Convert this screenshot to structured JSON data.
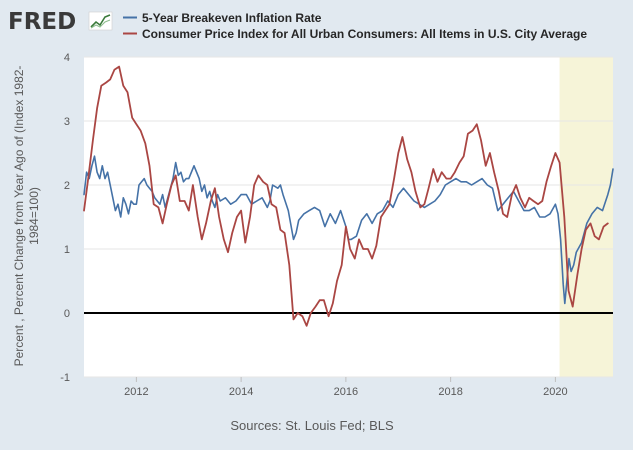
{
  "logo": {
    "text": "FRED"
  },
  "source": "Sources: St. Louis Fed; BLS",
  "chart_data": {
    "type": "line",
    "title": "",
    "xlabel": "",
    "ylabel": [
      "Percent , Percent Change from Year Ago of (Index 1982-",
      "1984=100)"
    ],
    "xlim": [
      2011.0,
      2021.1
    ],
    "ylim": [
      -1,
      4
    ],
    "x_ticks": [
      2012,
      2014,
      2016,
      2018,
      2020
    ],
    "x_tick_labels": [
      "2012",
      "2014",
      "2016",
      "2018",
      "2020"
    ],
    "y_ticks": [
      -1,
      0,
      1,
      2,
      3,
      4
    ],
    "y_tick_labels": [
      "-1",
      "0",
      "1",
      "2",
      "3",
      "4"
    ],
    "grid": "horizontal",
    "legend": "top-left",
    "recession": {
      "start": 2020.08,
      "end": 2021.1,
      "color": "#f6f4d8"
    },
    "zero_line": 0,
    "series": [
      {
        "name": "5-Year Breakeven Inflation Rate",
        "color": "#4572a7",
        "x": [
          2011.0,
          2011.05,
          2011.1,
          2011.15,
          2011.2,
          2011.25,
          2011.3,
          2011.35,
          2011.4,
          2011.45,
          2011.5,
          2011.55,
          2011.6,
          2011.65,
          2011.7,
          2011.75,
          2011.8,
          2011.85,
          2011.9,
          2011.95,
          2012.0,
          2012.05,
          2012.1,
          2012.15,
          2012.2,
          2012.25,
          2012.3,
          2012.35,
          2012.4,
          2012.45,
          2012.5,
          2012.55,
          2012.6,
          2012.65,
          2012.7,
          2012.75,
          2012.8,
          2012.85,
          2012.9,
          2012.95,
          2013.0,
          2013.05,
          2013.1,
          2013.15,
          2013.2,
          2013.25,
          2013.3,
          2013.35,
          2013.4,
          2013.45,
          2013.5,
          2013.55,
          2013.6,
          2013.7,
          2013.8,
          2013.9,
          2014.0,
          2014.1,
          2014.2,
          2014.3,
          2014.4,
          2014.5,
          2014.55,
          2014.6,
          2014.7,
          2014.75,
          2014.8,
          2014.9,
          2015.0,
          2015.05,
          2015.1,
          2015.2,
          2015.3,
          2015.4,
          2015.5,
          2015.6,
          2015.7,
          2015.8,
          2015.9,
          2016.0,
          2016.05,
          2016.1,
          2016.2,
          2016.3,
          2016.4,
          2016.5,
          2016.6,
          2016.7,
          2016.8,
          2016.9,
          2017.0,
          2017.1,
          2017.2,
          2017.3,
          2017.4,
          2017.5,
          2017.6,
          2017.7,
          2017.8,
          2017.9,
          2018.0,
          2018.1,
          2018.2,
          2018.3,
          2018.4,
          2018.5,
          2018.6,
          2018.7,
          2018.8,
          2018.9,
          2019.0,
          2019.1,
          2019.2,
          2019.3,
          2019.4,
          2019.5,
          2019.6,
          2019.7,
          2019.8,
          2019.9,
          2020.0,
          2020.05,
          2020.1,
          2020.15,
          2020.18,
          2020.22,
          2020.26,
          2020.3,
          2020.35,
          2020.4,
          2020.5,
          2020.6,
          2020.7,
          2020.8,
          2020.9,
          2021.0,
          2021.05,
          2021.1
        ],
        "values": [
          1.85,
          2.2,
          2.1,
          2.3,
          2.45,
          2.2,
          2.1,
          2.3,
          2.1,
          2.2,
          2.0,
          1.8,
          1.6,
          1.7,
          1.5,
          1.8,
          1.7,
          1.55,
          1.75,
          1.7,
          1.7,
          2.0,
          2.05,
          2.1,
          2.0,
          1.95,
          1.9,
          1.8,
          1.75,
          1.7,
          1.85,
          1.65,
          1.8,
          1.95,
          2.1,
          2.35,
          2.15,
          2.2,
          2.05,
          2.1,
          2.1,
          2.2,
          2.3,
          2.2,
          2.1,
          1.9,
          2.0,
          1.8,
          1.9,
          1.75,
          1.65,
          1.85,
          1.75,
          1.8,
          1.7,
          1.75,
          1.85,
          1.85,
          1.7,
          1.75,
          1.8,
          1.65,
          1.75,
          2.0,
          1.95,
          2.0,
          1.85,
          1.6,
          1.15,
          1.25,
          1.45,
          1.55,
          1.6,
          1.65,
          1.6,
          1.35,
          1.55,
          1.4,
          1.6,
          1.35,
          1.15,
          1.15,
          1.2,
          1.45,
          1.55,
          1.4,
          1.55,
          1.6,
          1.75,
          1.65,
          1.85,
          1.95,
          1.85,
          1.75,
          1.7,
          1.65,
          1.7,
          1.75,
          1.85,
          2.0,
          2.05,
          2.1,
          2.05,
          2.05,
          2.0,
          2.05,
          2.1,
          2.0,
          1.95,
          1.6,
          1.7,
          1.8,
          1.9,
          1.75,
          1.6,
          1.6,
          1.65,
          1.5,
          1.5,
          1.55,
          1.7,
          1.55,
          1.15,
          0.45,
          0.15,
          0.5,
          0.85,
          0.65,
          0.75,
          0.95,
          1.1,
          1.4,
          1.55,
          1.65,
          1.6,
          1.85,
          2.0,
          2.25
        ]
      },
      {
        "name": "Consumer Price Index for All Urban Consumers: All Items in U.S. City Average",
        "color": "#aa4643",
        "x": [
          2011.0,
          2011.08,
          2011.17,
          2011.25,
          2011.33,
          2011.42,
          2011.5,
          2011.58,
          2011.67,
          2011.75,
          2011.83,
          2011.92,
          2012.0,
          2012.08,
          2012.17,
          2012.25,
          2012.33,
          2012.42,
          2012.5,
          2012.58,
          2012.67,
          2012.75,
          2012.83,
          2012.92,
          2013.0,
          2013.08,
          2013.17,
          2013.25,
          2013.33,
          2013.42,
          2013.5,
          2013.58,
          2013.67,
          2013.75,
          2013.83,
          2013.92,
          2014.0,
          2014.08,
          2014.17,
          2014.25,
          2014.33,
          2014.42,
          2014.5,
          2014.58,
          2014.67,
          2014.75,
          2014.83,
          2014.92,
          2015.0,
          2015.08,
          2015.17,
          2015.25,
          2015.33,
          2015.42,
          2015.5,
          2015.58,
          2015.67,
          2015.75,
          2015.83,
          2015.92,
          2016.0,
          2016.08,
          2016.17,
          2016.25,
          2016.33,
          2016.42,
          2016.5,
          2016.58,
          2016.67,
          2016.75,
          2016.83,
          2016.92,
          2017.0,
          2017.08,
          2017.17,
          2017.25,
          2017.33,
          2017.42,
          2017.5,
          2017.58,
          2017.67,
          2017.75,
          2017.83,
          2017.92,
          2018.0,
          2018.08,
          2018.17,
          2018.25,
          2018.33,
          2018.42,
          2018.5,
          2018.58,
          2018.67,
          2018.75,
          2018.83,
          2018.92,
          2019.0,
          2019.08,
          2019.17,
          2019.25,
          2019.33,
          2019.42,
          2019.5,
          2019.58,
          2019.67,
          2019.75,
          2019.83,
          2019.92,
          2020.0,
          2020.08,
          2020.17,
          2020.25,
          2020.33,
          2020.42,
          2020.5,
          2020.58,
          2020.67,
          2020.75,
          2020.83,
          2020.92,
          2021.0
        ],
        "values": [
          1.6,
          2.1,
          2.7,
          3.2,
          3.55,
          3.6,
          3.65,
          3.8,
          3.85,
          3.55,
          3.45,
          3.05,
          2.95,
          2.85,
          2.65,
          2.3,
          1.7,
          1.65,
          1.4,
          1.7,
          2.0,
          2.15,
          1.75,
          1.75,
          1.6,
          2.0,
          1.5,
          1.15,
          1.4,
          1.75,
          1.95,
          1.5,
          1.15,
          0.95,
          1.25,
          1.5,
          1.6,
          1.1,
          1.5,
          2.0,
          2.15,
          2.05,
          2.0,
          1.7,
          1.65,
          1.3,
          1.25,
          0.75,
          -0.1,
          0.0,
          -0.05,
          -0.2,
          0.0,
          0.1,
          0.2,
          0.2,
          -0.05,
          0.15,
          0.5,
          0.75,
          1.35,
          1.0,
          0.85,
          1.15,
          1.0,
          1.0,
          0.85,
          1.05,
          1.5,
          1.6,
          1.7,
          2.1,
          2.5,
          2.75,
          2.4,
          2.2,
          1.9,
          1.65,
          1.7,
          1.95,
          2.25,
          2.05,
          2.2,
          2.1,
          2.1,
          2.2,
          2.35,
          2.45,
          2.8,
          2.85,
          2.95,
          2.7,
          2.3,
          2.5,
          2.2,
          1.9,
          1.55,
          1.5,
          1.85,
          2.0,
          1.8,
          1.65,
          1.8,
          1.75,
          1.7,
          1.75,
          2.05,
          2.3,
          2.5,
          2.35,
          1.5,
          0.35,
          0.1,
          0.6,
          1.0,
          1.3,
          1.4,
          1.2,
          1.15,
          1.35,
          1.4
        ]
      }
    ]
  }
}
